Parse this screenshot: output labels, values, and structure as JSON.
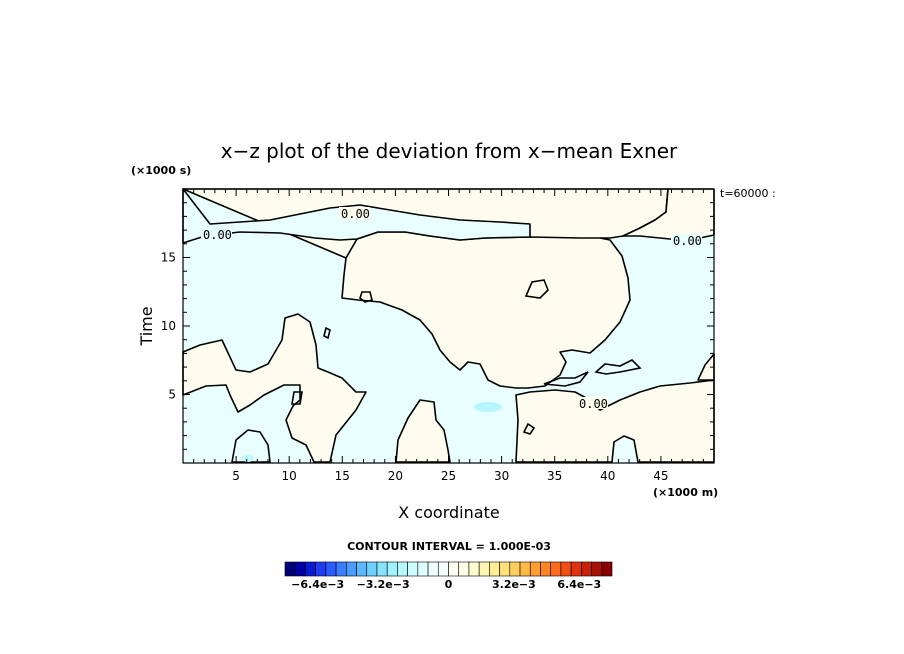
{
  "chart_data": {
    "type": "contour",
    "title": "x−z plot of the deviation from x−mean Exner",
    "xlabel": "X coordinate",
    "ylabel": "Time",
    "x_unit": "(×1000 m)",
    "y_unit": "(×1000 s)",
    "time_label": "t=60000 :",
    "xlim": [
      0,
      50
    ],
    "ylim": [
      0,
      20
    ],
    "x_ticks": [
      5,
      10,
      15,
      20,
      25,
      30,
      35,
      40,
      45
    ],
    "y_ticks": [
      5,
      10,
      15
    ],
    "contour_interval_text": "CONTOUR INTERVAL = 1.000E-03",
    "contour_label": "0.00",
    "colors": {
      "positive_fill": "#fdfcee",
      "negative_fill": "#e8feff",
      "contour_line": "#000000"
    },
    "colorbar": {
      "min": -0.008,
      "max": 0.008,
      "interval": 0.0005,
      "tick_labels": [
        "−6.4e−3",
        "−3.2e−3",
        "0",
        "3.2e−3",
        "6.4e−3"
      ],
      "tick_values": [
        -0.0064,
        -0.0032,
        0,
        0.0032,
        0.0064
      ],
      "colors": [
        "#00007a",
        "#0000a8",
        "#0a1ad2",
        "#1f3cf0",
        "#2a5cff",
        "#3a7dff",
        "#4a9cff",
        "#5cb8ff",
        "#6fd0ff",
        "#86e4ff",
        "#9ff2ff",
        "#b7f8ff",
        "#ccfcff",
        "#dffeff",
        "#eefeff",
        "#f8ffff",
        "#fffff6",
        "#fffee6",
        "#fffcd2",
        "#fff6b4",
        "#ffee96",
        "#ffe07a",
        "#ffcf5e",
        "#ffb845",
        "#ff9f32",
        "#ff8425",
        "#ff6a1c",
        "#f24e15",
        "#e0330f",
        "#c8210a",
        "#a81005",
        "#880000"
      ]
    }
  }
}
